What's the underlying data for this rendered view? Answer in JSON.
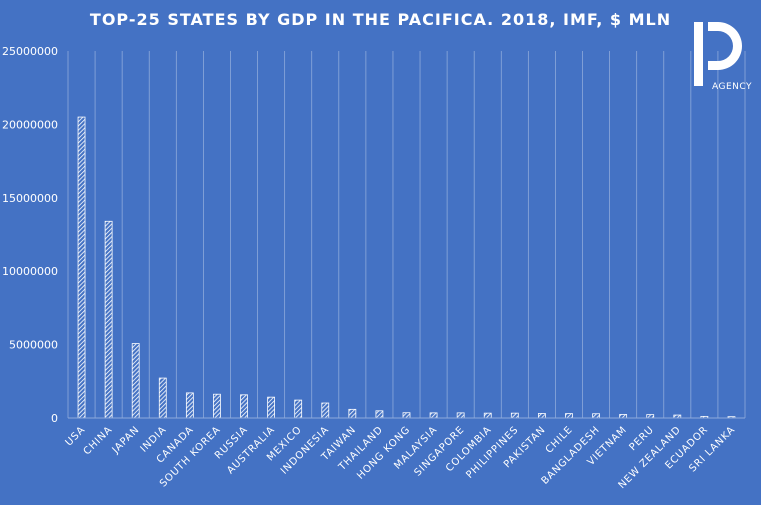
{
  "chart_data": {
    "type": "bar",
    "title": "TOP-25 STATES BY GDP IN THE PACIFICA. 2018, IMF, $ MLN",
    "xlabel": "",
    "ylabel": "",
    "ylim": [
      0,
      25000000
    ],
    "yticks": [
      "0",
      "5000000",
      "10000000",
      "15000000",
      "20000000",
      "25000000"
    ],
    "grid": "vertical",
    "categories": [
      "USA",
      "CHINA",
      "JAPAN",
      "INDIA",
      "CANADA",
      "SOUTH KOREA",
      "RUSSIA",
      "AUSTRALIA",
      "MEXICO",
      "INDONESIA",
      "TAIWAN",
      "THAILAND",
      "HONG KONG",
      "MALAYSIA",
      "SINGAPORE",
      "COLOMBIA",
      "PHILIPPINES",
      "PAKISTAN",
      "CHILE",
      "BANGLADESH",
      "VIETNAM",
      "PERU",
      "NEW ZEALAND",
      "ECUADOR",
      "SRI LANKA"
    ],
    "values": [
      20500000,
      13400000,
      5070000,
      2720000,
      1710000,
      1620000,
      1580000,
      1420000,
      1220000,
      1020000,
      590000,
      490000,
      360000,
      350000,
      350000,
      330000,
      330000,
      310000,
      300000,
      290000,
      240000,
      230000,
      200000,
      110000,
      90000
    ],
    "colors": {
      "background": "#4472c4",
      "bar_stroke": "#ffffff",
      "grid": "#8eaadb",
      "text": "#ffffff"
    }
  },
  "logo": {
    "text": "AGENCY"
  }
}
